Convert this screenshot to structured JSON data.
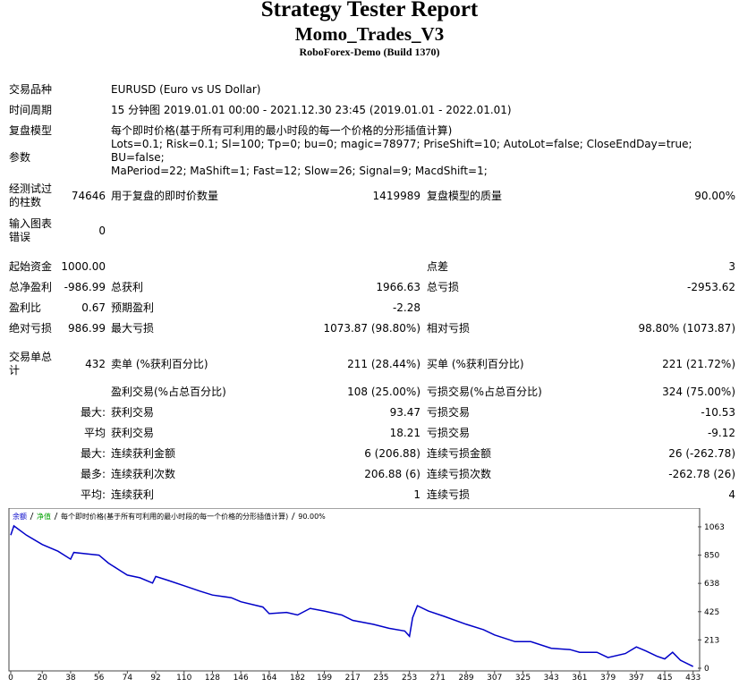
{
  "header": {
    "title": "Strategy Tester Report",
    "subtitle": "Momo_Trades_V3",
    "build": "RoboForex-Demo (Build 1370)"
  },
  "table": {
    "rows": [
      [
        "交易品种",
        "EURUSD (Euro vs US Dollar)"
      ],
      [
        "时间周期",
        "15 分钟图 2019.01.01 00:00 - 2021.12.30 23:45 (2019.01.01 - 2022.01.01)"
      ],
      [
        "复盘模型",
        "每个即时价格(基于所有可利用的最小时段的每一个价格的分形插值计算)"
      ],
      [
        "参数",
        [
          "Lots=0.1; Risk=0.1; Sl=100; Tp=0; bu=0; magic=78977; PriseShift=10; AutoLot=false; CloseEndDay=true; BU=false;",
          "MaPeriod=22; MaShift=1; Fast=12; Slow=26; Signal=9; MacdShift=1;"
        ]
      ],
      [
        "经测试过的柱数",
        "74646",
        "用于复盘的即时价数量",
        "1419989",
        "复盘模型的质量",
        "90.00%"
      ],
      [
        "输入图表错误",
        "0",
        null,
        null,
        null,
        null
      ],
      [
        "起始资金",
        "1000.00",
        null,
        null,
        "点差",
        "3"
      ],
      [
        "总净盈利",
        "-986.99",
        "总获利",
        "1966.63",
        "总亏损",
        "-2953.62"
      ],
      [
        "盈利比",
        "0.67",
        "预期盈利",
        "-2.28",
        null,
        null
      ],
      [
        "绝对亏损",
        "986.99",
        "最大亏损",
        "1073.87 (98.80%)",
        "相对亏损",
        "98.80% (1073.87)"
      ],
      [
        "交易单总计",
        "432",
        "卖单 (%获利百分比)",
        "211 (28.44%)",
        "买单 (%获利百分比)",
        "221 (21.72%)"
      ],
      [
        null,
        null,
        "盈利交易(%占总百分比)",
        "108 (25.00%)",
        "亏损交易(%占总百分比)",
        "324 (75.00%)"
      ],
      [
        null,
        "最大:",
        "获利交易",
        "93.47",
        "亏损交易",
        "-10.53"
      ],
      [
        null,
        "平均",
        "获利交易",
        "18.21",
        "亏损交易",
        "-9.12"
      ],
      [
        null,
        "最大:",
        "连续获利金额",
        "6 (206.88)",
        "连续亏损金额",
        "26 (-262.78)"
      ],
      [
        null,
        "最多:",
        "连续获利次数",
        "206.88 (6)",
        "连续亏损次数",
        "-262.78 (26)"
      ],
      [
        null,
        "平均:",
        "连续获利",
        "1",
        "连续亏损",
        "4"
      ]
    ]
  },
  "chart_data": {
    "type": "line",
    "legend": [
      {
        "text": "余额",
        "color": "#0000c8"
      },
      {
        "text": "净值",
        "color": "#00a000"
      },
      {
        "text": "每个即时价格(基于所有可利用的最小时段的每一个价格的分形插值计算)"
      },
      {
        "text": "90.00%"
      }
    ],
    "series": [
      {
        "color": "#0000c8",
        "x": [
          0,
          2,
          10,
          20,
          30,
          38,
          40,
          48,
          56,
          62,
          70,
          74,
          82,
          90,
          92,
          100,
          110,
          120,
          128,
          140,
          146,
          160,
          164,
          175,
          182,
          190,
          199,
          210,
          217,
          230,
          240,
          250,
          253,
          255,
          258,
          265,
          275,
          289,
          300,
          307,
          320,
          330,
          343,
          355,
          361,
          372,
          379,
          390,
          397,
          403,
          410,
          415,
          420,
          425,
          433
        ],
        "values": [
          1000,
          1070,
          1000,
          930,
          880,
          820,
          870,
          860,
          850,
          790,
          730,
          700,
          680,
          640,
          690,
          660,
          620,
          580,
          550,
          530,
          500,
          460,
          410,
          420,
          400,
          450,
          430,
          400,
          360,
          330,
          300,
          280,
          240,
          380,
          470,
          430,
          390,
          330,
          290,
          250,
          200,
          200,
          150,
          140,
          120,
          120,
          80,
          110,
          160,
          130,
          90,
          70,
          120,
          60,
          13
        ]
      }
    ],
    "xlim": [
      0,
      436
    ],
    "ylim": [
      0,
      1177
    ],
    "xticks": [
      0,
      20,
      38,
      56,
      74,
      92,
      110,
      128,
      146,
      164,
      182,
      199,
      217,
      235,
      253,
      271,
      289,
      307,
      325,
      343,
      361,
      379,
      397,
      415,
      433
    ],
    "yticks": [
      0,
      213,
      425,
      638,
      850,
      1063
    ]
  }
}
